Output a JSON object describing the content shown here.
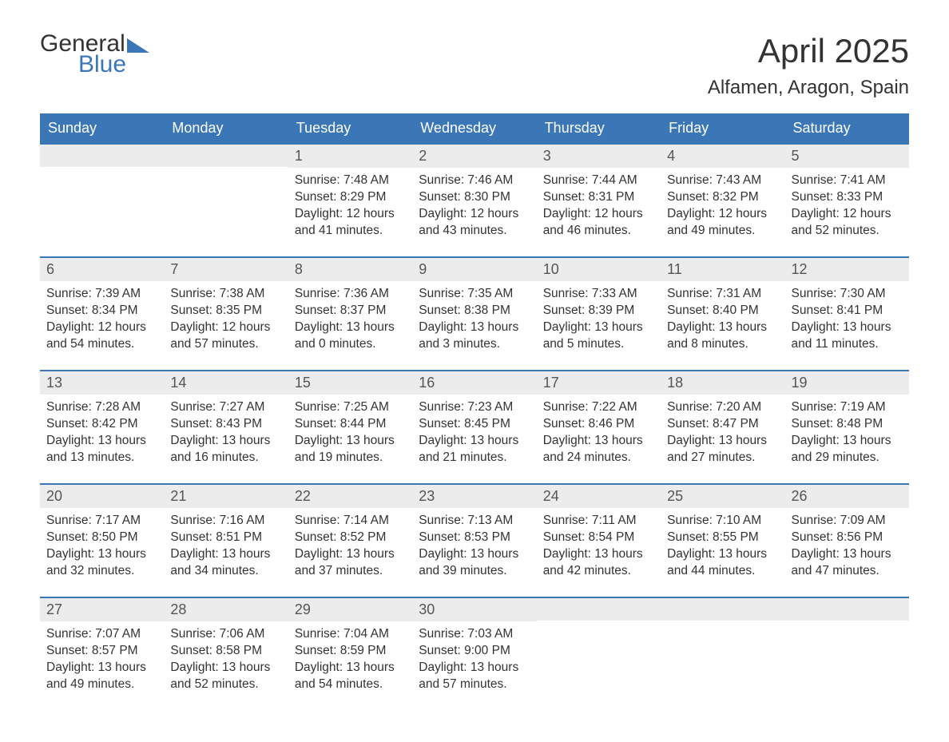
{
  "logo": {
    "word1": "General",
    "word2": "Blue",
    "tri_color": "#3b77b7"
  },
  "title": "April 2025",
  "location": "Alfamen, Aragon, Spain",
  "colors": {
    "header_bg": "#3b77b7",
    "header_text": "#ffffff",
    "daynum_bg": "#ececec",
    "border": "#3b77b7",
    "text": "#333333"
  },
  "day_names": [
    "Sunday",
    "Monday",
    "Tuesday",
    "Wednesday",
    "Thursday",
    "Friday",
    "Saturday"
  ],
  "weeks": [
    [
      {
        "n": "",
        "sunrise": "",
        "sunset": "",
        "daylight1": "",
        "daylight2": ""
      },
      {
        "n": "",
        "sunrise": "",
        "sunset": "",
        "daylight1": "",
        "daylight2": ""
      },
      {
        "n": "1",
        "sunrise": "Sunrise: 7:48 AM",
        "sunset": "Sunset: 8:29 PM",
        "daylight1": "Daylight: 12 hours",
        "daylight2": "and 41 minutes."
      },
      {
        "n": "2",
        "sunrise": "Sunrise: 7:46 AM",
        "sunset": "Sunset: 8:30 PM",
        "daylight1": "Daylight: 12 hours",
        "daylight2": "and 43 minutes."
      },
      {
        "n": "3",
        "sunrise": "Sunrise: 7:44 AM",
        "sunset": "Sunset: 8:31 PM",
        "daylight1": "Daylight: 12 hours",
        "daylight2": "and 46 minutes."
      },
      {
        "n": "4",
        "sunrise": "Sunrise: 7:43 AM",
        "sunset": "Sunset: 8:32 PM",
        "daylight1": "Daylight: 12 hours",
        "daylight2": "and 49 minutes."
      },
      {
        "n": "5",
        "sunrise": "Sunrise: 7:41 AM",
        "sunset": "Sunset: 8:33 PM",
        "daylight1": "Daylight: 12 hours",
        "daylight2": "and 52 minutes."
      }
    ],
    [
      {
        "n": "6",
        "sunrise": "Sunrise: 7:39 AM",
        "sunset": "Sunset: 8:34 PM",
        "daylight1": "Daylight: 12 hours",
        "daylight2": "and 54 minutes."
      },
      {
        "n": "7",
        "sunrise": "Sunrise: 7:38 AM",
        "sunset": "Sunset: 8:35 PM",
        "daylight1": "Daylight: 12 hours",
        "daylight2": "and 57 minutes."
      },
      {
        "n": "8",
        "sunrise": "Sunrise: 7:36 AM",
        "sunset": "Sunset: 8:37 PM",
        "daylight1": "Daylight: 13 hours",
        "daylight2": "and 0 minutes."
      },
      {
        "n": "9",
        "sunrise": "Sunrise: 7:35 AM",
        "sunset": "Sunset: 8:38 PM",
        "daylight1": "Daylight: 13 hours",
        "daylight2": "and 3 minutes."
      },
      {
        "n": "10",
        "sunrise": "Sunrise: 7:33 AM",
        "sunset": "Sunset: 8:39 PM",
        "daylight1": "Daylight: 13 hours",
        "daylight2": "and 5 minutes."
      },
      {
        "n": "11",
        "sunrise": "Sunrise: 7:31 AM",
        "sunset": "Sunset: 8:40 PM",
        "daylight1": "Daylight: 13 hours",
        "daylight2": "and 8 minutes."
      },
      {
        "n": "12",
        "sunrise": "Sunrise: 7:30 AM",
        "sunset": "Sunset: 8:41 PM",
        "daylight1": "Daylight: 13 hours",
        "daylight2": "and 11 minutes."
      }
    ],
    [
      {
        "n": "13",
        "sunrise": "Sunrise: 7:28 AM",
        "sunset": "Sunset: 8:42 PM",
        "daylight1": "Daylight: 13 hours",
        "daylight2": "and 13 minutes."
      },
      {
        "n": "14",
        "sunrise": "Sunrise: 7:27 AM",
        "sunset": "Sunset: 8:43 PM",
        "daylight1": "Daylight: 13 hours",
        "daylight2": "and 16 minutes."
      },
      {
        "n": "15",
        "sunrise": "Sunrise: 7:25 AM",
        "sunset": "Sunset: 8:44 PM",
        "daylight1": "Daylight: 13 hours",
        "daylight2": "and 19 minutes."
      },
      {
        "n": "16",
        "sunrise": "Sunrise: 7:23 AM",
        "sunset": "Sunset: 8:45 PM",
        "daylight1": "Daylight: 13 hours",
        "daylight2": "and 21 minutes."
      },
      {
        "n": "17",
        "sunrise": "Sunrise: 7:22 AM",
        "sunset": "Sunset: 8:46 PM",
        "daylight1": "Daylight: 13 hours",
        "daylight2": "and 24 minutes."
      },
      {
        "n": "18",
        "sunrise": "Sunrise: 7:20 AM",
        "sunset": "Sunset: 8:47 PM",
        "daylight1": "Daylight: 13 hours",
        "daylight2": "and 27 minutes."
      },
      {
        "n": "19",
        "sunrise": "Sunrise: 7:19 AM",
        "sunset": "Sunset: 8:48 PM",
        "daylight1": "Daylight: 13 hours",
        "daylight2": "and 29 minutes."
      }
    ],
    [
      {
        "n": "20",
        "sunrise": "Sunrise: 7:17 AM",
        "sunset": "Sunset: 8:50 PM",
        "daylight1": "Daylight: 13 hours",
        "daylight2": "and 32 minutes."
      },
      {
        "n": "21",
        "sunrise": "Sunrise: 7:16 AM",
        "sunset": "Sunset: 8:51 PM",
        "daylight1": "Daylight: 13 hours",
        "daylight2": "and 34 minutes."
      },
      {
        "n": "22",
        "sunrise": "Sunrise: 7:14 AM",
        "sunset": "Sunset: 8:52 PM",
        "daylight1": "Daylight: 13 hours",
        "daylight2": "and 37 minutes."
      },
      {
        "n": "23",
        "sunrise": "Sunrise: 7:13 AM",
        "sunset": "Sunset: 8:53 PM",
        "daylight1": "Daylight: 13 hours",
        "daylight2": "and 39 minutes."
      },
      {
        "n": "24",
        "sunrise": "Sunrise: 7:11 AM",
        "sunset": "Sunset: 8:54 PM",
        "daylight1": "Daylight: 13 hours",
        "daylight2": "and 42 minutes."
      },
      {
        "n": "25",
        "sunrise": "Sunrise: 7:10 AM",
        "sunset": "Sunset: 8:55 PM",
        "daylight1": "Daylight: 13 hours",
        "daylight2": "and 44 minutes."
      },
      {
        "n": "26",
        "sunrise": "Sunrise: 7:09 AM",
        "sunset": "Sunset: 8:56 PM",
        "daylight1": "Daylight: 13 hours",
        "daylight2": "and 47 minutes."
      }
    ],
    [
      {
        "n": "27",
        "sunrise": "Sunrise: 7:07 AM",
        "sunset": "Sunset: 8:57 PM",
        "daylight1": "Daylight: 13 hours",
        "daylight2": "and 49 minutes."
      },
      {
        "n": "28",
        "sunrise": "Sunrise: 7:06 AM",
        "sunset": "Sunset: 8:58 PM",
        "daylight1": "Daylight: 13 hours",
        "daylight2": "and 52 minutes."
      },
      {
        "n": "29",
        "sunrise": "Sunrise: 7:04 AM",
        "sunset": "Sunset: 8:59 PM",
        "daylight1": "Daylight: 13 hours",
        "daylight2": "and 54 minutes."
      },
      {
        "n": "30",
        "sunrise": "Sunrise: 7:03 AM",
        "sunset": "Sunset: 9:00 PM",
        "daylight1": "Daylight: 13 hours",
        "daylight2": "and 57 minutes."
      },
      {
        "n": "",
        "sunrise": "",
        "sunset": "",
        "daylight1": "",
        "daylight2": ""
      },
      {
        "n": "",
        "sunrise": "",
        "sunset": "",
        "daylight1": "",
        "daylight2": ""
      },
      {
        "n": "",
        "sunrise": "",
        "sunset": "",
        "daylight1": "",
        "daylight2": ""
      }
    ]
  ]
}
